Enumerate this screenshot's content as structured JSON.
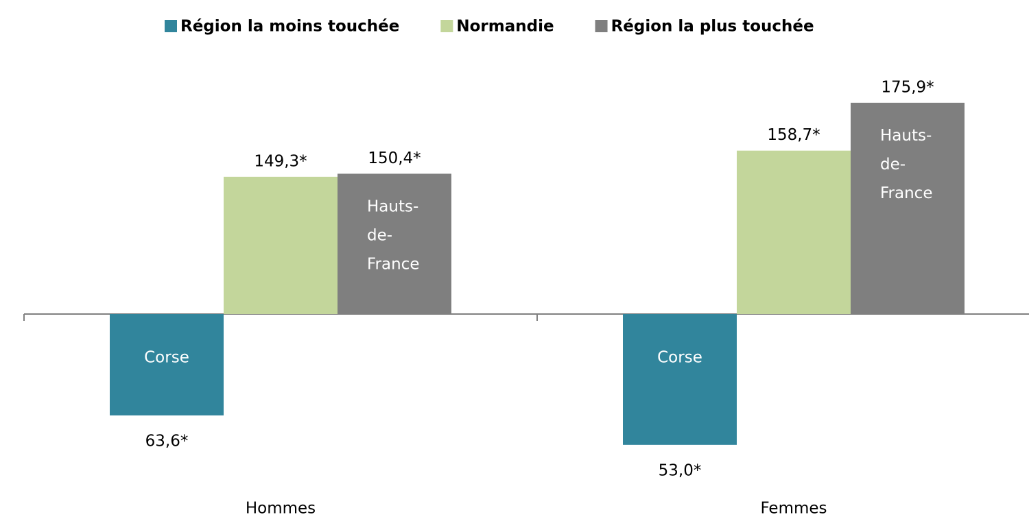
{
  "chart_data": {
    "type": "bar",
    "categories": [
      "Hommes",
      "Femmes"
    ],
    "baseline": 100,
    "ylim": [
      40,
      185
    ],
    "legend": "top",
    "series": [
      {
        "name": "Région la moins touchée",
        "color": "#31859c",
        "values": [
          63.6,
          53.0
        ],
        "value_labels": [
          "63,6*",
          "53,0*"
        ],
        "bar_labels": [
          "Corse",
          "Corse"
        ]
      },
      {
        "name": "Normandie",
        "color": "#c3d69b",
        "values": [
          149.3,
          158.7
        ],
        "value_labels": [
          "149,3*",
          "158,7*"
        ]
      },
      {
        "name": "Région la plus touchée",
        "color": "#7f7f7f",
        "values": [
          150.4,
          175.9
        ],
        "value_labels": [
          "150,4*",
          "175,9*"
        ],
        "bar_labels": [
          "Hauts-de-France",
          "Hauts-de-France"
        ]
      }
    ]
  }
}
